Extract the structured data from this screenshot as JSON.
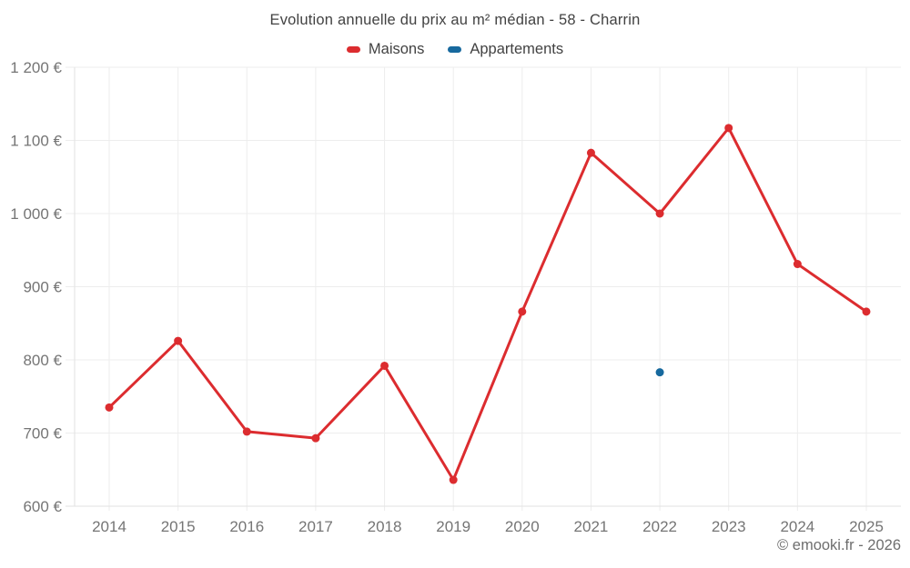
{
  "title": "Evolution annuelle du prix au m² médian - 58 - Charrin",
  "legend": {
    "items": [
      {
        "label": "Maisons",
        "color": "#dc2c2f"
      },
      {
        "label": "Appartements",
        "color": "#17699e"
      }
    ]
  },
  "footer": {
    "credit": "© emooki.fr - 2026"
  },
  "chart_data": {
    "type": "line",
    "title": "Evolution annuelle du prix au m² médian - 58 - Charrin",
    "categories": [
      "2014",
      "2015",
      "2016",
      "2017",
      "2018",
      "2019",
      "2020",
      "2021",
      "2022",
      "2023",
      "2024",
      "2025"
    ],
    "series": [
      {
        "name": "Maisons",
        "color": "#dc2c2f",
        "values": [
          735,
          826,
          702,
          693,
          792,
          636,
          866,
          1083,
          1000,
          1117,
          931,
          866
        ]
      },
      {
        "name": "Appartements",
        "color": "#17699e",
        "values": [
          null,
          null,
          null,
          null,
          null,
          null,
          null,
          null,
          783,
          null,
          null,
          null
        ]
      }
    ],
    "xlabel": "",
    "ylabel": "",
    "ylim": [
      600,
      1200
    ],
    "ytick_step": 100,
    "ytick_suffix": " €",
    "grid": true,
    "legend_position": "top",
    "grid_color": "#ededed",
    "axis_line_color": "#e2e2e2",
    "axis_label_color": "#757575"
  }
}
